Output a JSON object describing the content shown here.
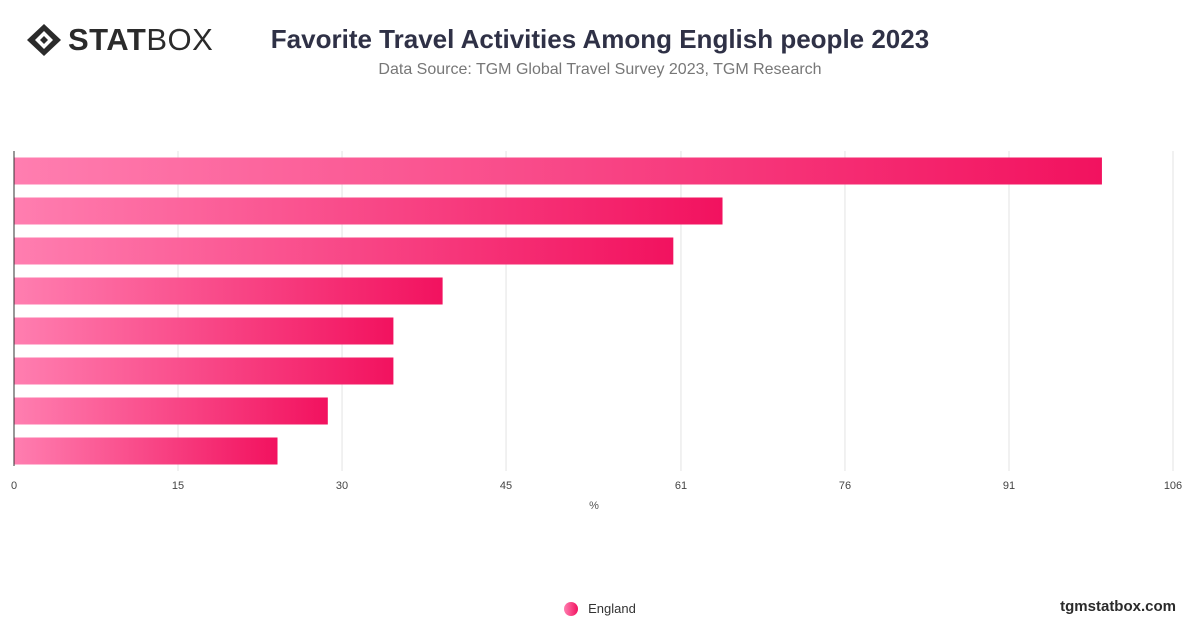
{
  "logo": {
    "part1": "STAT",
    "part2": "BOX"
  },
  "header": {
    "title": "Favorite Travel Activities Among English people 2023",
    "subtitle": "Data Source: TGM Global Travel Survey 2023, TGM Research"
  },
  "footer": {
    "site": "tgmstatbox.com"
  },
  "colors": {
    "bar_start": "#ff7eb0",
    "bar_end": "#f2125f",
    "grid": "#e3e3e3",
    "axis": "#333333"
  },
  "chart_data": {
    "type": "bar",
    "orientation": "horizontal",
    "xlabel": "%",
    "xlim": [
      0,
      106
    ],
    "xticks": [
      0,
      15,
      30,
      45,
      61,
      76,
      91,
      106
    ],
    "grid": true,
    "legend_position": "bottom",
    "series": [
      {
        "name": "England",
        "values": [
          99.5,
          64.8,
          60.3,
          39.2,
          34.7,
          34.7,
          28.7,
          24.1
        ]
      }
    ]
  }
}
